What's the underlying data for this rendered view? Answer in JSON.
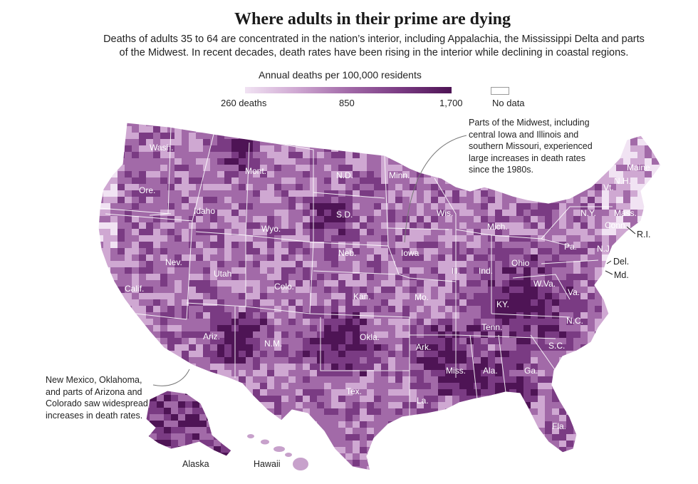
{
  "title": "Where adults in their prime are dying",
  "subtitle": "Deaths of adults 35 to 64 are concentrated in the nation’s interior, including Appalachia, the Mississippi Delta and parts of the Midwest. In recent decades, death rates have been rising in the interior while declining in coastal regions.",
  "legend": {
    "title": "Annual deaths per 100,000 residents",
    "min_label": "260 deaths",
    "mid_label": "850",
    "max_label": "1,700",
    "no_data_label": "No data",
    "colors": [
      "#f1e3f3",
      "#cfa8d2",
      "#a26aa8",
      "#7a3b83",
      "#4e1455"
    ],
    "no_data_color": "#ffffff"
  },
  "annotations": {
    "midwest": "Parts of the Midwest, including central Iowa and Illinois and southern Missouri, experienced large increases in death rates since the 1980s.",
    "southwest": "New Mexico, Oklahoma, and parts of Arizona and Colorado saw widespread increases in death rates."
  },
  "state_labels": [
    "Wash.",
    "Ore.",
    "Calif.",
    "Nev.",
    "Idaho",
    "Mont.",
    "Wyo.",
    "Utah",
    "Ariz.",
    "Colo.",
    "N.M.",
    "N.D.",
    "S.D.",
    "Neb.",
    "Kan.",
    "Okla.",
    "Tex.",
    "Minn.",
    "Iowa",
    "Mo.",
    "Ark.",
    "La.",
    "Wis.",
    "Ill.",
    "Mich.",
    "Ind.",
    "Ohio",
    "KY.",
    "Tenn.",
    "Miss.",
    "Ala.",
    "Ga.",
    "Fla.",
    "S.C.",
    "N.C.",
    "Va.",
    "W.Va.",
    "Pa.",
    "N.Y.",
    "Vt.",
    "N.H.",
    "Maine",
    "Mass.",
    "Conn.",
    "N.J."
  ],
  "external_labels": [
    "R.I.",
    "Del.",
    "Md.",
    "Alaska",
    "Hawaii"
  ]
}
